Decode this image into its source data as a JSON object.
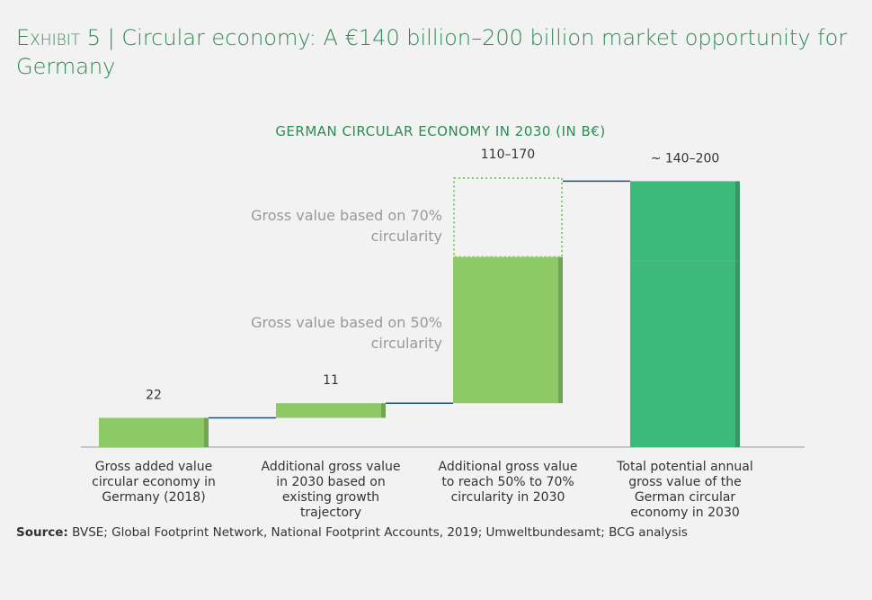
{
  "chart_data": {
    "type": "waterfall",
    "label": "Exhibit 5 |",
    "title": "Circular economy: A €140 billion–200 billion market opportunity for Germany",
    "subtitle": "GERMAN CIRCULAR ECONOMY IN 2030 (IN B€)",
    "categories": [
      "Gross added value circular economy in Germany (2018)",
      "Additional gross value in 2030 based on existing growth trajectory",
      "Additional gross value to reach 50% to 70% circularity in 2030",
      "Total potential annual gross value of the German circular economy in 2030"
    ],
    "measures": [
      "relative",
      "relative",
      "relative",
      "total"
    ],
    "series": [
      {
        "name": "Gross value based on 50% circularity",
        "color": "#8dc965",
        "values": [
          22,
          11,
          110,
          140
        ]
      },
      {
        "name": "Gross value based on 70% circularity",
        "color": "#8dc965",
        "style": "dotted",
        "values": [
          null,
          null,
          60,
          60
        ]
      }
    ],
    "total_color": "#3dba7a",
    "connector_color": "#1f4e79",
    "value_labels": [
      "22",
      "11",
      "110–170",
      "~ 140–200"
    ],
    "source_label": "Source:",
    "source": "BVSE; Global Footprint Network, National Footprint Accounts, 2019; Umweltbundesamt; BCG analysis"
  }
}
